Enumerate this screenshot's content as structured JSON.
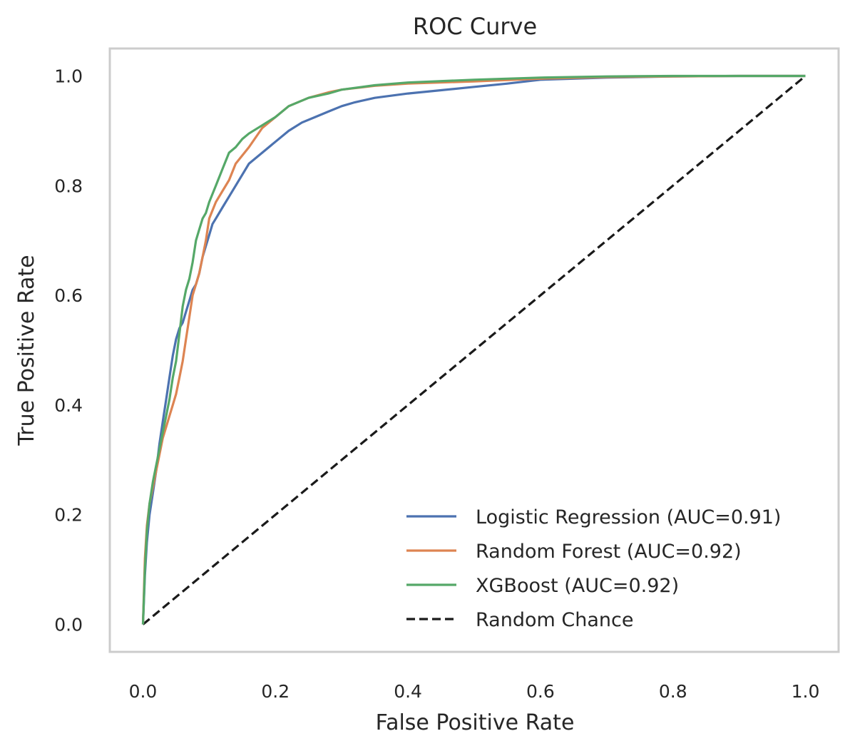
{
  "chart_data": {
    "type": "line",
    "title": "ROC Curve",
    "xlabel": "False Positive Rate",
    "ylabel": "True Positive Rate",
    "xlim": [
      -0.05,
      1.05
    ],
    "ylim": [
      -0.05,
      1.05
    ],
    "xticks": [
      0.0,
      0.2,
      0.4,
      0.6,
      0.8,
      1.0
    ],
    "yticks": [
      0.0,
      0.2,
      0.4,
      0.6,
      0.8,
      1.0
    ],
    "xtick_labels": [
      "0.0",
      "0.2",
      "0.4",
      "0.6",
      "0.8",
      "1.0"
    ],
    "ytick_labels": [
      "0.0",
      "0.2",
      "0.4",
      "0.6",
      "0.8",
      "1.0"
    ],
    "grid": false,
    "legend_position": "bottom-right",
    "series": [
      {
        "name": "Logistic Regression (AUC=0.91)",
        "color": "#4c72b0",
        "dash": "solid",
        "x": [
          0.0,
          0.003,
          0.006,
          0.01,
          0.015,
          0.02,
          0.025,
          0.03,
          0.035,
          0.04,
          0.045,
          0.05,
          0.055,
          0.06,
          0.065,
          0.07,
          0.075,
          0.08,
          0.085,
          0.09,
          0.095,
          0.1,
          0.105,
          0.11,
          0.12,
          0.13,
          0.14,
          0.15,
          0.16,
          0.18,
          0.2,
          0.22,
          0.24,
          0.26,
          0.28,
          0.3,
          0.32,
          0.35,
          0.4,
          0.45,
          0.5,
          0.55,
          0.6,
          0.7,
          0.8,
          0.9,
          1.0
        ],
        "y": [
          0.0,
          0.09,
          0.15,
          0.2,
          0.24,
          0.28,
          0.33,
          0.37,
          0.41,
          0.45,
          0.49,
          0.52,
          0.54,
          0.55,
          0.57,
          0.59,
          0.61,
          0.62,
          0.64,
          0.67,
          0.69,
          0.71,
          0.73,
          0.74,
          0.76,
          0.78,
          0.8,
          0.82,
          0.84,
          0.86,
          0.88,
          0.9,
          0.915,
          0.925,
          0.935,
          0.945,
          0.952,
          0.96,
          0.968,
          0.974,
          0.98,
          0.986,
          0.993,
          0.997,
          0.999,
          1.0,
          1.0
        ]
      },
      {
        "name": "Random Forest (AUC=0.92)",
        "color": "#dd8452",
        "dash": "solid",
        "x": [
          0.0,
          0.003,
          0.006,
          0.01,
          0.015,
          0.02,
          0.025,
          0.03,
          0.035,
          0.04,
          0.045,
          0.05,
          0.055,
          0.06,
          0.065,
          0.07,
          0.075,
          0.08,
          0.085,
          0.09,
          0.095,
          0.1,
          0.11,
          0.12,
          0.13,
          0.14,
          0.16,
          0.18,
          0.2,
          0.22,
          0.25,
          0.28,
          0.3,
          0.35,
          0.4,
          0.5,
          0.6,
          0.7,
          0.8,
          0.9,
          1.0
        ],
        "y": [
          0.0,
          0.12,
          0.18,
          0.22,
          0.25,
          0.28,
          0.31,
          0.34,
          0.36,
          0.38,
          0.4,
          0.42,
          0.45,
          0.48,
          0.52,
          0.56,
          0.6,
          0.62,
          0.64,
          0.67,
          0.7,
          0.74,
          0.77,
          0.79,
          0.81,
          0.84,
          0.87,
          0.905,
          0.925,
          0.945,
          0.96,
          0.97,
          0.975,
          0.982,
          0.986,
          0.99,
          0.995,
          0.998,
          0.999,
          1.0,
          1.0
        ]
      },
      {
        "name": "XGBoost (AUC=0.92)",
        "color": "#55a868",
        "dash": "solid",
        "x": [
          0.0,
          0.003,
          0.006,
          0.01,
          0.015,
          0.02,
          0.025,
          0.03,
          0.035,
          0.04,
          0.045,
          0.05,
          0.055,
          0.06,
          0.065,
          0.07,
          0.075,
          0.08,
          0.085,
          0.09,
          0.095,
          0.1,
          0.11,
          0.12,
          0.13,
          0.14,
          0.15,
          0.16,
          0.18,
          0.2,
          0.22,
          0.25,
          0.28,
          0.3,
          0.35,
          0.4,
          0.5,
          0.6,
          0.7,
          0.8,
          0.9,
          1.0
        ],
        "y": [
          0.0,
          0.1,
          0.17,
          0.22,
          0.26,
          0.29,
          0.32,
          0.35,
          0.38,
          0.41,
          0.45,
          0.48,
          0.53,
          0.58,
          0.61,
          0.63,
          0.66,
          0.7,
          0.72,
          0.74,
          0.75,
          0.77,
          0.8,
          0.83,
          0.86,
          0.87,
          0.885,
          0.895,
          0.91,
          0.925,
          0.945,
          0.96,
          0.968,
          0.975,
          0.983,
          0.988,
          0.993,
          0.997,
          0.999,
          1.0,
          1.0,
          1.0
        ]
      },
      {
        "name": "Random Chance",
        "color": "#1a1a1a",
        "dash": "dashed",
        "x": [
          0.0,
          1.0
        ],
        "y": [
          0.0,
          1.0
        ]
      }
    ]
  }
}
